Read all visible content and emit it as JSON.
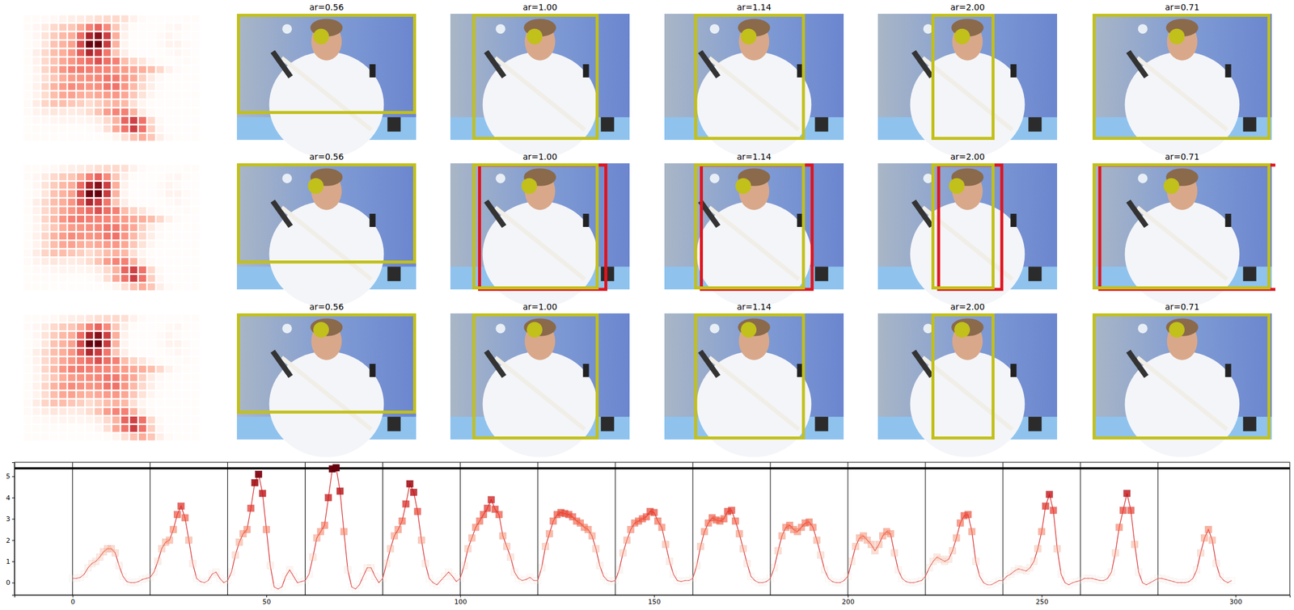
{
  "chart_data": {
    "type": "line",
    "color": "#d62728",
    "marker": "square",
    "x": [
      0,
      1,
      2,
      3,
      4,
      5,
      6,
      7,
      8,
      9,
      10,
      11,
      12,
      13,
      14,
      15,
      16,
      17,
      18,
      19,
      20,
      21,
      22,
      23,
      24,
      25,
      26,
      27,
      28,
      29,
      30,
      31,
      32,
      33,
      34,
      35,
      36,
      37,
      38,
      39,
      40,
      41,
      42,
      43,
      44,
      45,
      46,
      47,
      48,
      49,
      50,
      51,
      52,
      53,
      54,
      55,
      56,
      57,
      58,
      59,
      60,
      61,
      62,
      63,
      64,
      65,
      66,
      67,
      68,
      69,
      70,
      71,
      72,
      73,
      74,
      75,
      76,
      77,
      78,
      79,
      80,
      81,
      82,
      83,
      84,
      85,
      86,
      87,
      88,
      89,
      90,
      91,
      92,
      93,
      94,
      95,
      96,
      97,
      98,
      99,
      100,
      101,
      102,
      103,
      104,
      105,
      106,
      107,
      108,
      109,
      110,
      111,
      112,
      113,
      114,
      115,
      116,
      117,
      118,
      119,
      120,
      121,
      122,
      123,
      124,
      125,
      126,
      127,
      128,
      129,
      130,
      131,
      132,
      133,
      134,
      135,
      136,
      137,
      138,
      139,
      140,
      141,
      142,
      143,
      144,
      145,
      146,
      147,
      148,
      149,
      150,
      151,
      152,
      153,
      154,
      155,
      156,
      157,
      158,
      159,
      160,
      161,
      162,
      163,
      164,
      165,
      166,
      167,
      168,
      169,
      170,
      171,
      172,
      173,
      174,
      175,
      176,
      177,
      178,
      179,
      180,
      181,
      182,
      183,
      184,
      185,
      186,
      187,
      188,
      189,
      190,
      191,
      192,
      193,
      194,
      195,
      196,
      197,
      198,
      199,
      200,
      201,
      202,
      203,
      204,
      205,
      206,
      207,
      208,
      209,
      210,
      211,
      212,
      213,
      214,
      215,
      216,
      217,
      218,
      219,
      220,
      221,
      222,
      223,
      224,
      225,
      226,
      227,
      228,
      229,
      230,
      231,
      232,
      233,
      234,
      235,
      236,
      237,
      238,
      239,
      240,
      241,
      242,
      243,
      244,
      245,
      246,
      247,
      248,
      249,
      250,
      251,
      252,
      253,
      254,
      255,
      256,
      257,
      258,
      259,
      260,
      261,
      262,
      263,
      264,
      265,
      266,
      267,
      268,
      269,
      270,
      271,
      272,
      273,
      274,
      275,
      276,
      277,
      278,
      279,
      280,
      281,
      282,
      283,
      284,
      285,
      286,
      287,
      288,
      289,
      290,
      291,
      292,
      293,
      294,
      295,
      296,
      297,
      298,
      299
    ],
    "values": [
      0.2,
      0.2,
      0.25,
      0.4,
      0.7,
      0.9,
      1.0,
      1.2,
      1.45,
      1.6,
      1.6,
      1.4,
      0.8,
      0.3,
      0.05,
      0.0,
      0.0,
      0.05,
      0.15,
      0.2,
      0.25,
      0.5,
      1.0,
      1.6,
      1.9,
      2.0,
      2.5,
      3.2,
      3.6,
      3.05,
      2.0,
      0.9,
      0.2,
      0.05,
      0.0,
      0.1,
      0.4,
      0.5,
      0.2,
      0.0,
      0.1,
      0.5,
      1.3,
      1.9,
      2.3,
      2.5,
      3.5,
      4.7,
      5.1,
      4.2,
      2.5,
      0.8,
      -0.2,
      -0.3,
      -0.2,
      0.3,
      0.6,
      0.3,
      0.0,
      0.05,
      0.1,
      0.4,
      1.2,
      2.1,
      2.4,
      2.7,
      4.0,
      5.35,
      5.4,
      4.3,
      2.4,
      0.6,
      -0.2,
      -0.3,
      -0.1,
      0.3,
      0.7,
      0.7,
      0.3,
      0.0,
      0.2,
      0.9,
      1.6,
      2.2,
      2.5,
      2.9,
      3.7,
      4.65,
      4.25,
      3.35,
      2.0,
      0.9,
      0.2,
      0.0,
      -0.1,
      0.1,
      0.3,
      0.5,
      0.3,
      0.05,
      0.2,
      0.8,
      1.6,
      2.1,
      2.6,
      2.9,
      3.2,
      3.5,
      3.9,
      3.45,
      3.2,
      2.2,
      1.7,
      1.2,
      0.5,
      0.2,
      0.1,
      0.15,
      0.25,
      0.1,
      0.1,
      0.7,
      1.7,
      2.3,
      2.9,
      3.2,
      3.3,
      3.25,
      3.2,
      3.1,
      2.9,
      2.8,
      2.6,
      2.5,
      2.2,
      1.6,
      0.8,
      0.3,
      0.1,
      0.05,
      0.1,
      0.6,
      1.4,
      2.0,
      2.5,
      2.8,
      2.9,
      3.0,
      3.1,
      3.35,
      3.3,
      2.9,
      2.6,
      1.8,
      1.0,
      0.4,
      0.1,
      0.05,
      0.1,
      0.1,
      0.2,
      0.8,
      1.7,
      2.4,
      2.8,
      3.05,
      2.95,
      2.9,
      3.0,
      3.35,
      3.4,
      2.9,
      2.3,
      1.6,
      0.9,
      0.3,
      0.1,
      0.0,
      0.0,
      0.05,
      0.2,
      0.7,
      1.5,
      2.2,
      2.6,
      2.7,
      2.5,
      2.4,
      2.6,
      2.8,
      2.85,
      2.6,
      2.0,
      1.3,
      0.6,
      0.2,
      0.05,
      0.0,
      0.0,
      0.1,
      0.3,
      1.0,
      1.7,
      2.1,
      2.2,
      2.0,
      1.8,
      1.5,
      1.8,
      2.2,
      2.4,
      2.3,
      1.4,
      0.6,
      0.2,
      0.05,
      0.0,
      0.0,
      0.05,
      0.1,
      0.3,
      0.7,
      1.0,
      1.2,
      1.1,
      1.0,
      1.1,
      1.5,
      2.1,
      2.8,
      3.15,
      3.2,
      2.4,
      1.0,
      0.3,
      0.0,
      -0.1,
      -0.1,
      0.0,
      0.1,
      0.1,
      0.3,
      0.4,
      0.55,
      0.65,
      0.6,
      0.55,
      0.7,
      1.0,
      1.6,
      2.4,
      3.6,
      4.15,
      3.4,
      1.6,
      0.4,
      0.0,
      -0.1,
      0.0,
      0.05,
      0.1,
      0.2,
      0.2,
      0.2,
      0.15,
      0.1,
      0.1,
      0.2,
      0.5,
      1.4,
      2.6,
      3.4,
      4.2,
      3.4,
      1.8,
      0.5,
      0.0,
      -0.1,
      0.0,
      0.1,
      0.2,
      0.2,
      0.15,
      0.1,
      0.05,
      0.0,
      0.0,
      0.0,
      0.05,
      0.2,
      0.6,
      1.4,
      2.1,
      2.5,
      2.0,
      0.9,
      0.3,
      0.1,
      0.0,
      0.1
    ],
    "xlim": [
      -15,
      314
    ],
    "ylim": [
      -0.58,
      5.66
    ],
    "xticks": [
      0,
      50,
      100,
      150,
      200,
      250,
      300
    ],
    "yticks": [
      0,
      1,
      2,
      3,
      4,
      5
    ],
    "vlines": [
      0,
      20,
      40,
      60,
      80,
      100,
      120,
      140,
      160,
      180,
      200,
      220,
      240,
      260,
      280
    ],
    "hlines": [
      5.38
    ]
  },
  "panels": {
    "titles": [
      "ar=0.56",
      "ar=1.00",
      "ar=1.14",
      "ar=2.00",
      "ar=0.71"
    ],
    "aspect_ratios": [
      0.56,
      1.0,
      1.14,
      2.0,
      0.71
    ]
  }
}
